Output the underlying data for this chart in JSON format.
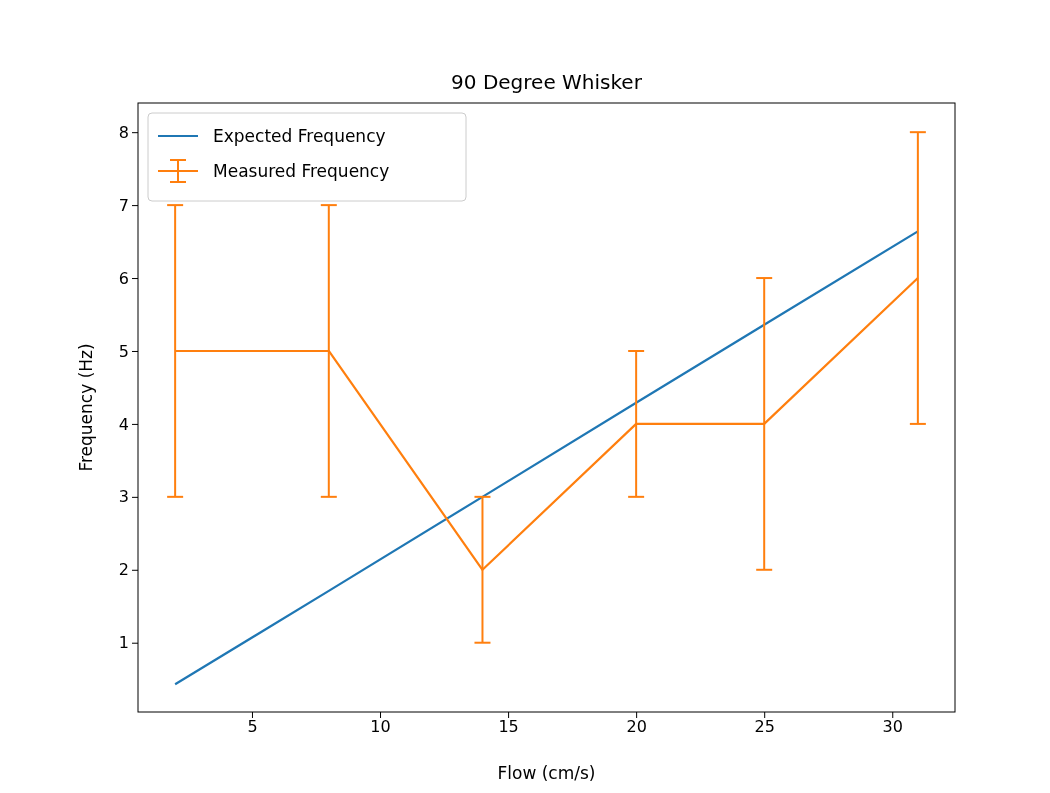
{
  "chart_data": {
    "type": "line",
    "title": "90 Degree Whisker",
    "xlabel": "Flow (cm/s)",
    "ylabel": "Frequency (Hz)",
    "xlim": [
      0.55,
      32.45
    ],
    "xticks": [
      5,
      10,
      15,
      20,
      25,
      30
    ],
    "ylim": [
      0.05,
      8.4
    ],
    "yticks": [
      1,
      2,
      3,
      4,
      5,
      6,
      7,
      8
    ],
    "legend": "top left",
    "grid": false,
    "series": [
      {
        "name": "Expected Frequency",
        "color": "#1f77b4",
        "x": [
          2,
          8,
          14,
          20,
          25,
          31
        ],
        "values": [
          0.43,
          1.71,
          3.0,
          4.29,
          5.36,
          6.64
        ]
      },
      {
        "name": "Measured Frequency",
        "color": "#ff7f0e",
        "x": [
          2,
          8,
          14,
          20,
          25,
          31
        ],
        "values": [
          5,
          5,
          2,
          4,
          4,
          6
        ],
        "errors": [
          2,
          2,
          1,
          1,
          2,
          2
        ]
      }
    ]
  }
}
